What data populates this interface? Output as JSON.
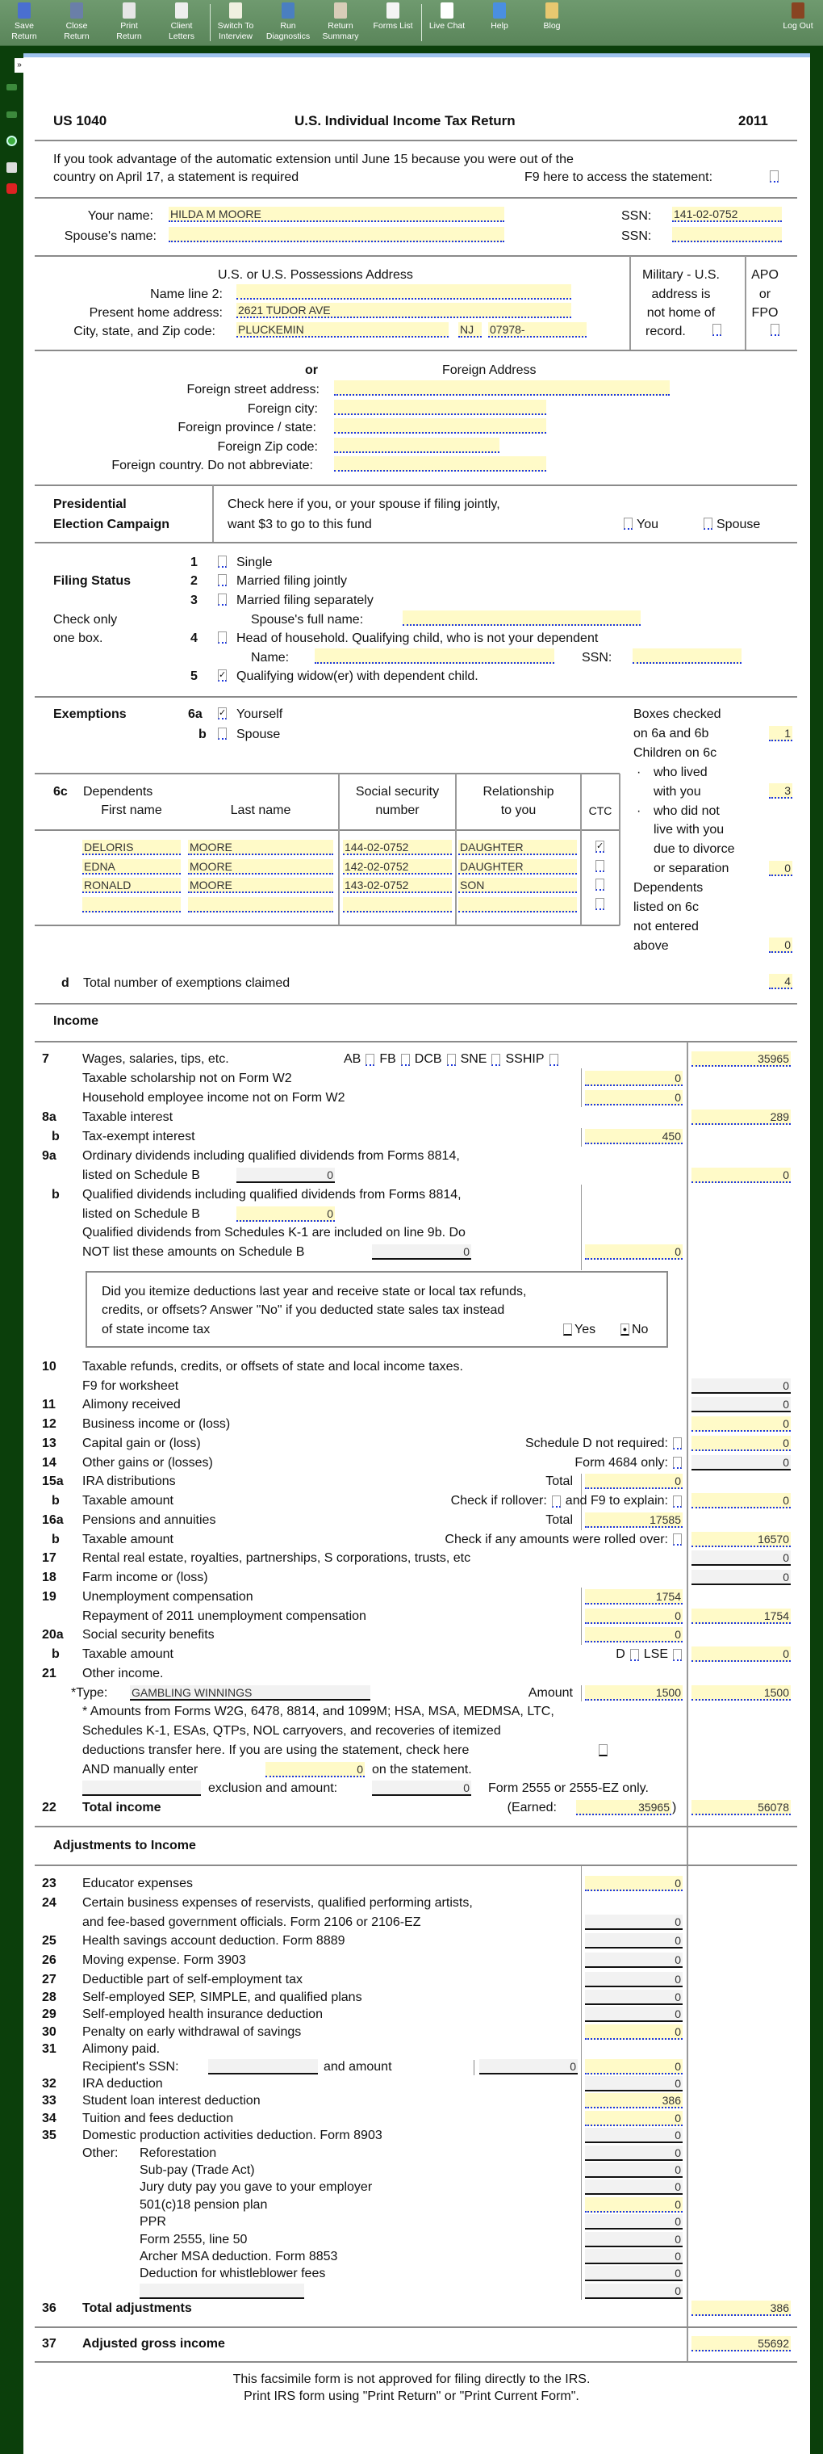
{
  "toolbar": {
    "buttons": [
      {
        "l1": "Save",
        "l2": "Return",
        "icon": "save-icon"
      },
      {
        "l1": "Close",
        "l2": "Return",
        "icon": "close-return-icon"
      },
      {
        "l1": "Print",
        "l2": "Return",
        "icon": "printer-icon"
      },
      {
        "l1": "Client",
        "l2": "Letters",
        "icon": "envelope-icon"
      },
      {
        "l1": "Switch To",
        "l2": "Interview",
        "icon": "switch-icon"
      },
      {
        "l1": "Run",
        "l2": "Diagnostics",
        "icon": "diagnostics-icon"
      },
      {
        "l1": "Return",
        "l2": "Summary",
        "icon": "clipboard-icon"
      },
      {
        "l1": "Forms List",
        "l2": "",
        "icon": "list-icon"
      },
      {
        "l1": "Live Chat",
        "l2": "",
        "icon": "chat-icon"
      },
      {
        "l1": "Help",
        "l2": "",
        "icon": "help-icon"
      },
      {
        "l1": "Blog",
        "l2": "",
        "icon": "scroll-icon"
      },
      {
        "l1": "Log Out",
        "l2": "",
        "icon": "logout-icon"
      }
    ],
    "expand": "»"
  },
  "colors": {
    "toolbar": "#628c62",
    "background": "#0b3f0b",
    "input": "#fffac8",
    "underline": "#1a35e0"
  },
  "header": {
    "form_id": "US 1040",
    "title": "U.S.  Individual Income Tax Return",
    "year": "2011"
  },
  "extension": {
    "line1": "If you took advantage of the automatic extension until June 15 because you were out of the",
    "line2": "country on April 17,  a statement is required",
    "f9": "F9 here to access the statement:"
  },
  "taxpayer": {
    "your_name_label": "Your name:",
    "your_name": "HILDA M MOORE",
    "ssn_label": "SSN:",
    "your_ssn": "141-02-0752",
    "spouse_name_label": "Spouse's name:",
    "spouse_name": "",
    "spouse_ssn": ""
  },
  "address": {
    "heading": "U.S. or U.S. Possessions Address",
    "name2_label": "Name line 2:",
    "name2": "",
    "home_label": "Present home address:",
    "home": "2621 TUDOR AVE",
    "city_label": "City,  state,  and Zip code:",
    "city": "PLUCKEMIN",
    "state": "NJ",
    "zip": "07978-",
    "military": [
      "Military - U.S.",
      "address is",
      "not home of",
      "record."
    ],
    "apo": [
      "APO",
      "or",
      "FPO"
    ]
  },
  "foreign": {
    "or": "or",
    "heading": "Foreign Address",
    "street_label": "Foreign street address:",
    "city_label": "Foreign city:",
    "province_label": "Foreign province / state:",
    "zip_label": "Foreign Zip code:",
    "country_label": "Foreign country.  Do not abbreviate:",
    "street": "",
    "city": "",
    "province": "",
    "zip": "",
    "country": ""
  },
  "presidential": {
    "title1": "Presidential",
    "title2": "Election Campaign",
    "text1": "Check here if you,  or your spouse if filing jointly,",
    "text2": "want $3 to go to this fund",
    "you": "You",
    "spouse": "Spouse"
  },
  "filing_status": {
    "title": "Filing Status",
    "hint1": "Check only",
    "hint2": "one box.",
    "options": [
      {
        "n": "1",
        "label": "Single",
        "checked": false
      },
      {
        "n": "2",
        "label": "Married filing jointly",
        "checked": false
      },
      {
        "n": "3",
        "label": "Married filing separately",
        "checked": false
      },
      {
        "n": "4",
        "label": "Head of household.  Qualifying child,  who is not your dependent",
        "checked": false
      },
      {
        "n": "5",
        "label": "Qualifying widow(er)  with dependent child.",
        "checked": true
      }
    ],
    "spouse_full_name_label": "Spouse's full name:",
    "spouse_full_name": "",
    "name_label": "Name:",
    "name": "",
    "ssn_label": "SSN:",
    "ssn": ""
  },
  "exemptions": {
    "title": "Exemptions",
    "a": "6a",
    "yourself": "Yourself",
    "yourself_checked": true,
    "b": "b",
    "spouse": "Spouse",
    "spouse_checked": false,
    "side": [
      "Boxes checked",
      "on 6a and 6b",
      "Children on 6c",
      "who lived",
      "with you",
      "who did not",
      "live with you",
      "due to divorce",
      "or separation",
      "Dependents",
      "listed on 6c",
      "not entered",
      "above"
    ],
    "boxes_checked": "1",
    "lived_with": "3",
    "not_lived": "0",
    "not_entered": "0",
    "table_label": "6c",
    "dependents": "Dependents",
    "first_name": "First name",
    "last_name": "Last name",
    "ssn_h1": "Social security",
    "ssn_h2": "number",
    "rel_h1": "Relationship",
    "rel_h2": "to you",
    "ctc": "CTC",
    "rows": [
      {
        "first": "DELORIS",
        "last": "MOORE",
        "ssn": "144-02-0752",
        "rel": "DAUGHTER",
        "ctc": true
      },
      {
        "first": "EDNA",
        "last": "MOORE",
        "ssn": "142-02-0752",
        "rel": "DAUGHTER",
        "ctc": false
      },
      {
        "first": "RONALD",
        "last": "MOORE",
        "ssn": "143-02-0752",
        "rel": "SON",
        "ctc": false
      },
      {
        "first": "",
        "last": "",
        "ssn": "",
        "rel": "",
        "ctc": false
      }
    ],
    "d": "d",
    "total_label": "Total number of exemptions claimed",
    "total": "4"
  },
  "income": {
    "heading": "Income",
    "l7": {
      "n": "7",
      "label": "Wages, salaries, tips, etc.",
      "checks": [
        "AB",
        "FB",
        "DCB",
        "SNE",
        "SSHIP"
      ],
      "value": "35965"
    },
    "schol": {
      "label": "Taxable scholarship not on Form W2",
      "value": "0"
    },
    "house": {
      "label": "Household employee income not on Form W2",
      "value": "0"
    },
    "l8a": {
      "n": "8a",
      "label": "Taxable interest",
      "value": "289"
    },
    "l8b": {
      "n": "b",
      "label": "Tax-exempt interest",
      "value": "450"
    },
    "l9a": {
      "n": "9a",
      "label": "Ordinary dividends including qualified dividends from Forms 8814,",
      "label2": "listed on Schedule B",
      "inline": "0",
      "value": "0"
    },
    "l9b": {
      "n": "b",
      "label": "Qualified dividends including qualified dividends from Forms 8814,",
      "label2": "listed on Schedule B",
      "inline": "0"
    },
    "k1": {
      "label": "Qualified dividends from Schedules K-1 are included on line 9b. Do",
      "label2": "NOT list these amounts on Schedule B",
      "inline": "0",
      "value": "0"
    },
    "question": {
      "line1": "Did you itemize deductions last year and receive state or local tax refunds,",
      "line2": "credits,  or offsets?  Answer \"No\"  if you deducted state sales tax instead",
      "line3": "of state income tax",
      "yes": "Yes",
      "no": "No",
      "selected": "No"
    },
    "l10": {
      "n": "10",
      "label": "Taxable refunds,  credits,  or offsets of state and local income taxes.",
      "label2": "F9  for worksheet",
      "value": "0"
    },
    "l11": {
      "n": "11",
      "label": "Alimony received",
      "value": "0"
    },
    "l12": {
      "n": "12",
      "label": "Business income or  (loss)",
      "value": "0"
    },
    "l13": {
      "n": "13",
      "label": "Capital gain or  (loss)",
      "note": "Schedule D not required:",
      "value": "0"
    },
    "l14": {
      "n": "14",
      "label": "Other gains or  (losses)",
      "note": "Form 4684 only:",
      "value": "0"
    },
    "l15a": {
      "n": "15a",
      "label": "IRA distributions",
      "note": "Total",
      "value": "0"
    },
    "l15b": {
      "n": "b",
      "label": "Taxable amount",
      "note": "Check if rollover:",
      "note2": "and F9 to explain:",
      "value": "0"
    },
    "l16a": {
      "n": "16a",
      "label": "Pensions and annuities",
      "note": "Total",
      "value": "17585"
    },
    "l16b": {
      "n": "b",
      "label": "Taxable amount",
      "note": "Check if any amounts were rolled over:",
      "value": "16570"
    },
    "l17": {
      "n": "17",
      "label": "Rental real estate,  royalties,  partnerships,  S corporations,  trusts,  etc",
      "value": "0"
    },
    "l18": {
      "n": "18",
      "label": "Farm income or  (loss)",
      "value": "0"
    },
    "l19": {
      "n": "19",
      "label": "Unemployment compensation",
      "value": "1754"
    },
    "repay": {
      "label": "Repayment of 2011 unemployment compensation",
      "value": "0",
      "total": "1754"
    },
    "l20a": {
      "n": "20a",
      "label": "Social security benefits",
      "value": "0"
    },
    "l20b": {
      "n": "b",
      "label": "Taxable amount",
      "note": "D",
      "note2": "LSE",
      "value": "0"
    },
    "l21": {
      "n": "21",
      "label": "Other income.",
      "type_label": "*Type:",
      "type": "GAMBLING WINNINGS",
      "amount_label": "Amount",
      "amount": "1500",
      "value": "1500",
      "note1": "* Amounts from Forms W2G,  6478,  8814,  and 1099M;  HSA,  MSA,  MEDMSA,  LTC,",
      "note2": "Schedules K-1,  ESAs,  QTPs,  NOL carryovers,  and recoveries of itemized",
      "note3": "deductions transfer here.  If you are using the statement,  check here",
      "note4a": "AND manually enter",
      "manual": "0",
      "note4b": "on the statement.",
      "exclusion_type": "",
      "exclusion_label": "exclusion and amount:",
      "exclusion": "0",
      "exclusion_note": "Form 2555 or 2555-EZ only."
    },
    "l22": {
      "n": "22",
      "label": "Total income",
      "earned_label": "(Earned:",
      "earned": "35965",
      "earned_close": ")",
      "value": "56078"
    }
  },
  "adjustments": {
    "heading": "Adjustments to Income",
    "rows": [
      {
        "n": "23",
        "label": "Educator expenses",
        "value": "0",
        "kind": "y"
      },
      {
        "n": "24",
        "label": "Certain business expenses of reservists,  qualified performing artists,"
      },
      {
        "n": "",
        "label": "and fee-based government officials.  Form 2106 or 2106-EZ",
        "value": "0",
        "kind": "g"
      },
      {
        "n": "25",
        "label": "Health savings account deduction.  Form 8889",
        "value": "0",
        "kind": "g"
      },
      {
        "n": "26",
        "label": "Moving expense.  Form 3903",
        "value": "0",
        "kind": "g"
      },
      {
        "n": "27",
        "label": "Deductible part of self-employment tax",
        "value": "0",
        "kind": "g"
      },
      {
        "n": "28",
        "label": "Self-employed SEP,  SIMPLE,  and qualified plans",
        "value": "0",
        "kind": "g"
      },
      {
        "n": "29",
        "label": "Self-employed health insurance deduction",
        "value": "0",
        "kind": "g"
      },
      {
        "n": "30",
        "label": "Penalty on early withdrawal of savings",
        "value": "0",
        "kind": "y"
      },
      {
        "n": "31",
        "label": "Alimony paid."
      }
    ],
    "recipient": {
      "label": "Recipient's SSN:",
      "ssn": "",
      "and_amount": "and amount",
      "amount": "0",
      "value": "0"
    },
    "rows2": [
      {
        "n": "32",
        "label": "IRA deduction",
        "value": "0",
        "kind": "g"
      },
      {
        "n": "33",
        "label": "Student loan interest deduction",
        "value": "386",
        "kind": "y"
      },
      {
        "n": "34",
        "label": "Tuition and fees deduction",
        "value": "0",
        "kind": "y"
      },
      {
        "n": "35",
        "label": "Domestic production activities deduction.  Form 8903",
        "value": "0",
        "kind": "g"
      }
    ],
    "other_label": "Other:",
    "other": [
      {
        "label": "Reforestation",
        "value": "0",
        "kind": "g"
      },
      {
        "label": "Sub-pay  (Trade Act)",
        "value": "0",
        "kind": "g"
      },
      {
        "label": "Jury duty pay you gave to your employer",
        "value": "0",
        "kind": "g"
      },
      {
        "label": "501(c)18 pension plan",
        "value": "0",
        "kind": "y"
      },
      {
        "label": "PPR",
        "value": "0",
        "kind": "g"
      },
      {
        "label": "Form 2555,  line 50",
        "value": "0",
        "kind": "g"
      },
      {
        "label": "Archer MSA deduction.  Form 8853",
        "value": "0",
        "kind": "g"
      },
      {
        "label": "Deduction for whistleblower fees",
        "value": "0",
        "kind": "g"
      }
    ],
    "blank_label": "",
    "blank_value": "0",
    "l36": {
      "n": "36",
      "label": "Total adjustments",
      "value": "386"
    },
    "l37": {
      "n": "37",
      "label": "Adjusted gross income",
      "value": "55692"
    }
  },
  "footer": {
    "line1": "This facsimile form is not approved for filing directly to the IRS.",
    "line2": "Print IRS form using \"Print Return\" or \"Print Current Form\"."
  }
}
